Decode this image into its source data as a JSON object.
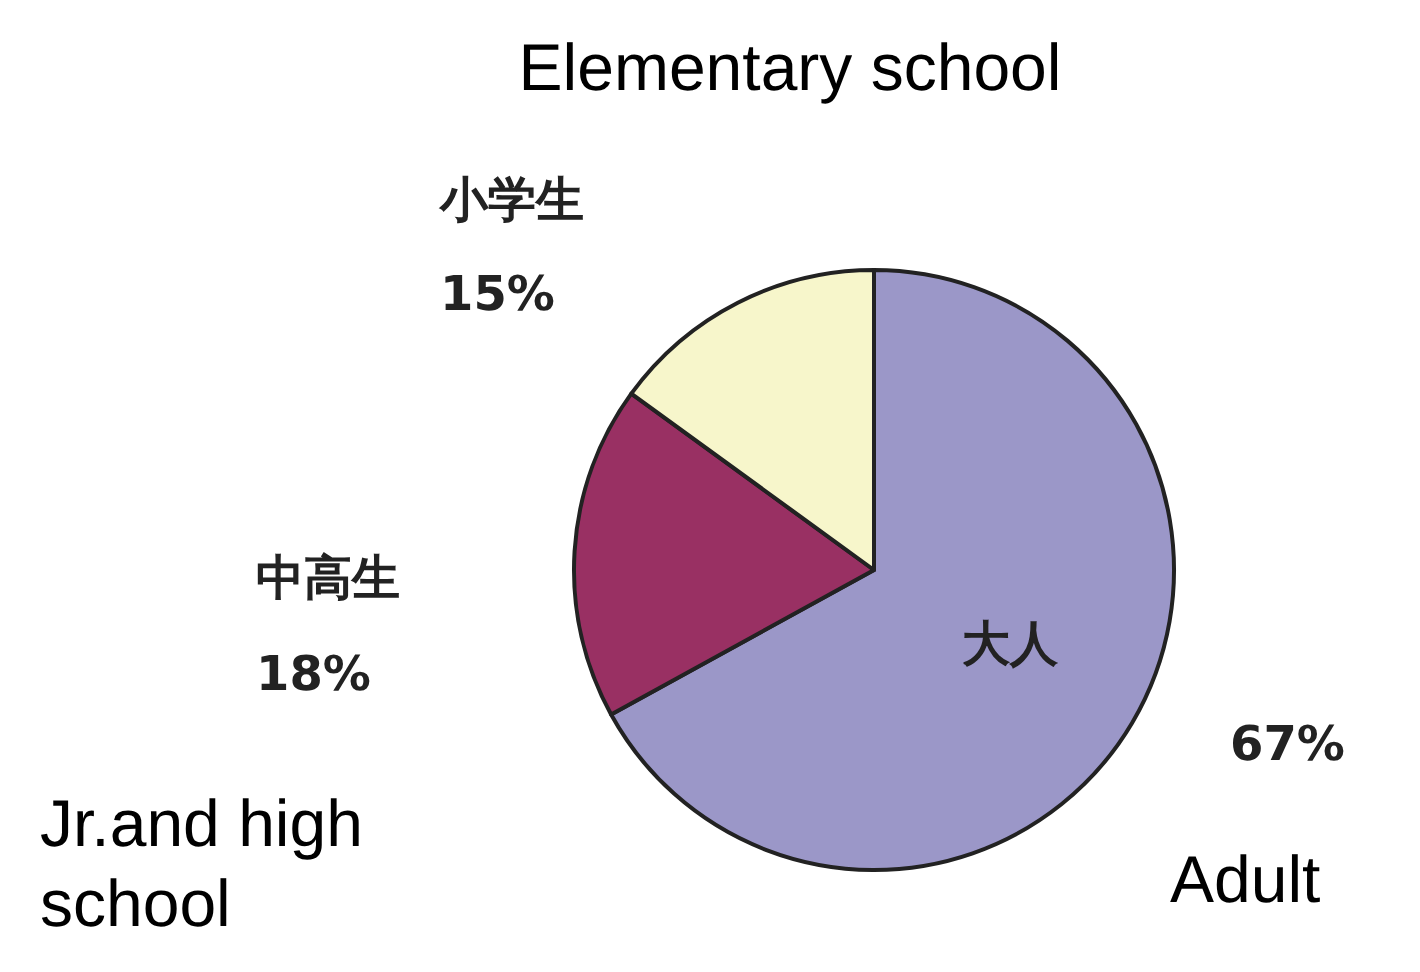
{
  "chart_data": {
    "type": "pie",
    "categories": [
      "大人",
      "中高生",
      "小学生"
    ],
    "values": [
      67,
      18,
      15
    ],
    "value_labels": [
      "67%",
      "18%",
      "15%"
    ],
    "colors": [
      "#9b97c8",
      "#993063",
      "#f7f6cb"
    ],
    "annotations": [
      "Elementary school",
      "Jr.and high school",
      "Adult"
    ]
  }
}
